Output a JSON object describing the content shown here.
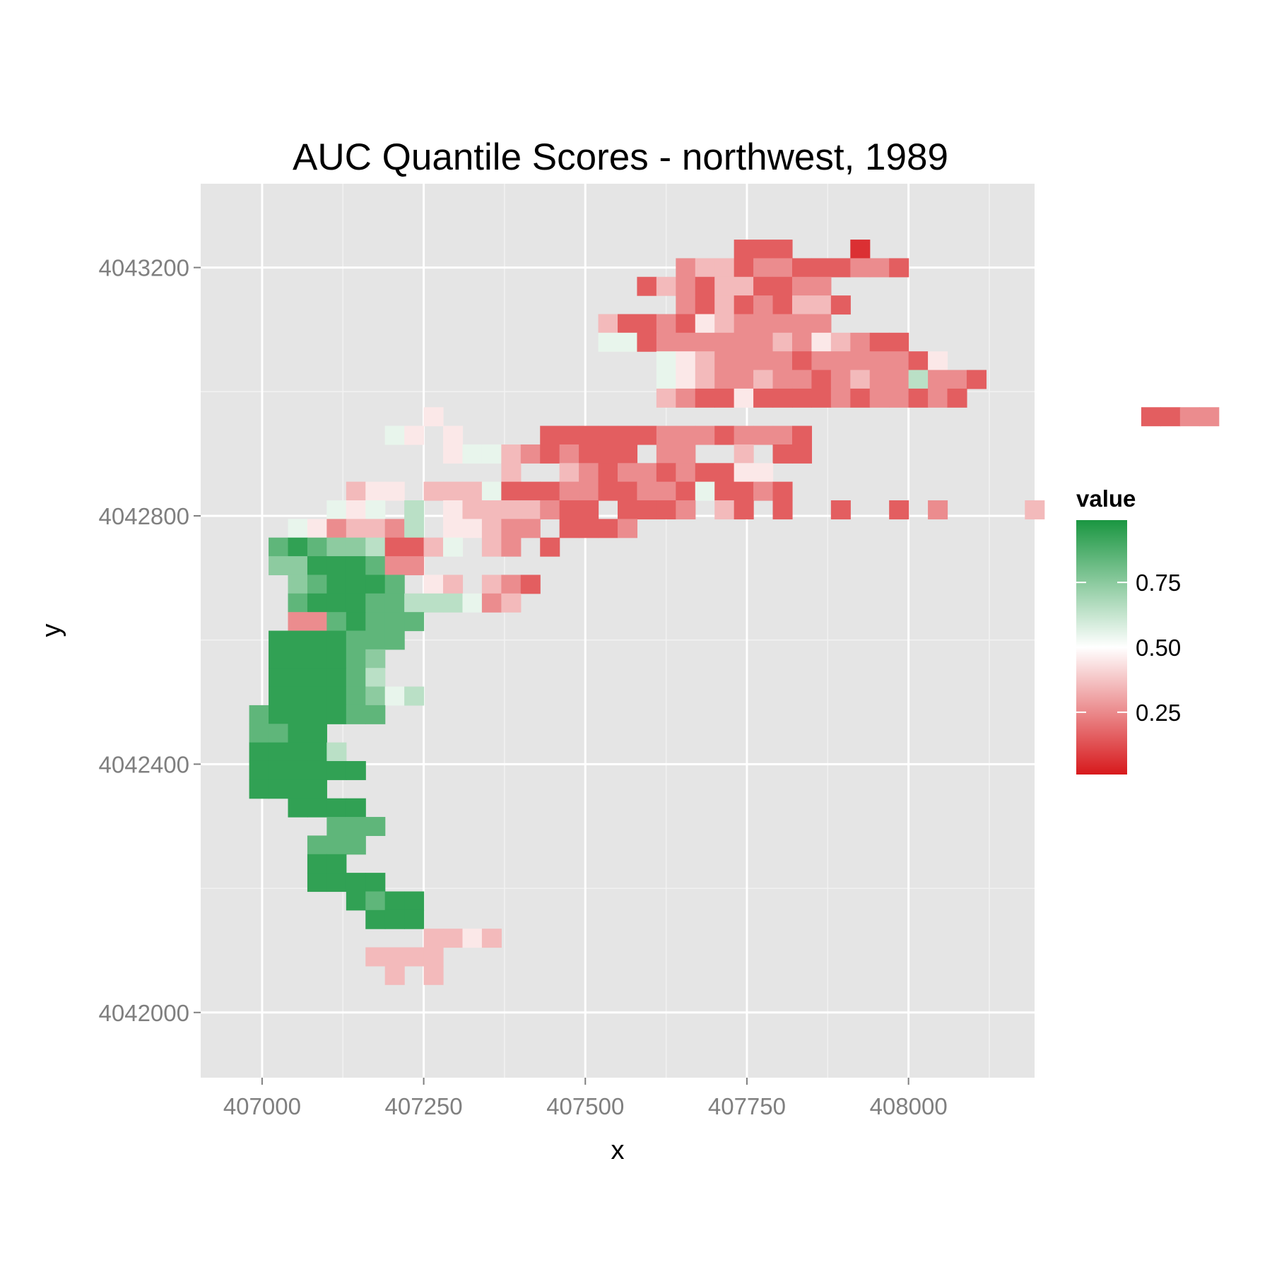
{
  "chart_data": {
    "type": "heatmap",
    "title": "AUC Quantile Scores - northwest, 1989",
    "xlabel": "x",
    "ylabel": "y",
    "xlim": [
      406905,
      408195
    ],
    "ylim": [
      4041895,
      4043335
    ],
    "x_ticks": [
      407000,
      407250,
      407500,
      407750,
      408000
    ],
    "x_tick_labels": [
      "407000",
      "407250",
      "407500",
      "407750",
      "408000"
    ],
    "y_ticks": [
      4042000,
      4042400,
      4042800,
      4043200
    ],
    "y_tick_labels": [
      "4042000",
      "4042400",
      "4042800",
      "4043200"
    ],
    "grid": true,
    "cell_size": 30,
    "x0": 406965,
    "y_top": 4043230,
    "row_codes": [
      "..........................111...0.",
      ".......................233122111221",
      ".....................1321331122",
      ".......................213121331",
      "...................311214322222",
      "...................5512222223243211",
      "......................543222212222214",
      "......................54322322123226221",
      "......................3211411112122121",
      "..........4....................................1122",
      "........54.4....11111122212221",
      "...........4553212111.22..3.11",
      "..............3..32122121144",
      "......344.3335111221122151121",
      ".....545.6.43333211.1112.31.1..1..1.2....3......",
      "...5423326.44322.1112",
      "..8987761135.32.1",
      "..77999822.",
      "...789998.43.321",
      "...899988666523",
      "...2289888....",
      "..9999888.",
      "..999987",
      "..999986",
      "..99998756",
      ".8999988",
      ".8899",
      ".99996",
      ".999999",
      ".9999",
      "...9999",
      ".....888",
      "....888",
      "....99",
      "....9999",
      "......9899",
      ".......999",
      "..........3343",
      ".......3333",
      "........3.3.",
      "..........."
    ],
    "color_scale": {
      "low": "#d7191c",
      "mid": "#ffffff",
      "high": "#1a9641",
      "min": 0,
      "max": 1
    },
    "legend": {
      "title": "value",
      "position": "right",
      "breaks": [
        0.25,
        0.5,
        0.75
      ],
      "labels": [
        "0.25",
        "0.50",
        "0.75"
      ],
      "range": [
        0.01,
        0.99
      ]
    }
  }
}
